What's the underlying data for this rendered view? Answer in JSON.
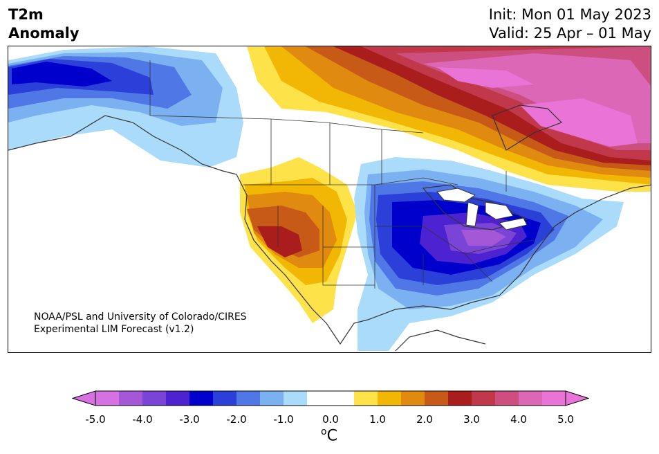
{
  "title": {
    "variable": "T2m",
    "kind": "Anomaly",
    "init": "Init: Mon 01 May 2023",
    "valid": "Valid: 25 Apr – 01 May"
  },
  "credit": {
    "line1": "NOAA/PSL and University of Colorado/CIRES",
    "line2": "Experimental LIM Forecast (v1.2)"
  },
  "colorbar": {
    "colors": [
      "#d571e0",
      "#a458d8",
      "#7a44d6",
      "#4d22d0",
      "#0000cc",
      "#2b3fd9",
      "#4f78e6",
      "#7bb1f0",
      "#aadbfb",
      "#ffffff",
      "#ffffff",
      "#fde24a",
      "#f2b705",
      "#e08a0f",
      "#c65a16",
      "#a91d1d",
      "#c1384a",
      "#cd4f80",
      "#dc67b6",
      "#e973d6"
    ],
    "ticks": [
      "-5.0",
      "-4.0",
      "-3.0",
      "-2.0",
      "-1.0",
      "0.0",
      "1.0",
      "2.0",
      "3.0",
      "4.0",
      "5.0"
    ],
    "unit_super": "o",
    "unit": "C"
  }
}
